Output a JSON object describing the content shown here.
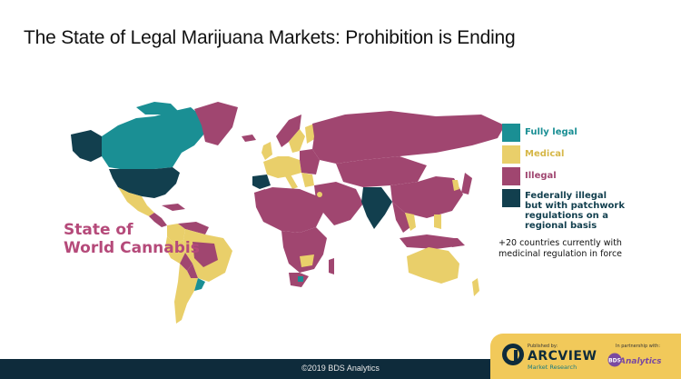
{
  "title": "The State of Legal Marijuana Markets: Prohibition is Ending",
  "overlay_title": [
    "State of",
    "World Cannabis"
  ],
  "legend": [
    {
      "label": "Fully legal",
      "color": "#1a8f94"
    },
    {
      "label": "Medical",
      "color": "#e9cf6a"
    },
    {
      "label": "Illegal",
      "color": "#a04670"
    },
    {
      "label": "Federally illegal but with patchwork regulations on a regional basis",
      "lines": [
        "Federally illegal",
        "but with patchwork",
        "regulations on a",
        "regional basis"
      ],
      "color": "#123f4e"
    }
  ],
  "note": [
    "+20 countries currently with",
    "medicinal regulation in force"
  ],
  "footer": {
    "copyright": "©2019 BDS Analytics"
  },
  "badge": {
    "published_by": "Published by:",
    "brand": "ARCVIEW",
    "brand_sub": "Market Research",
    "partner_label": "In partnership with:",
    "partner": "Analytics"
  },
  "colors": {
    "legal": "#1a8f94",
    "medical": "#e9cf6a",
    "illegal": "#a04670",
    "federal": "#123f4e",
    "footer": "#0e2b3b"
  }
}
